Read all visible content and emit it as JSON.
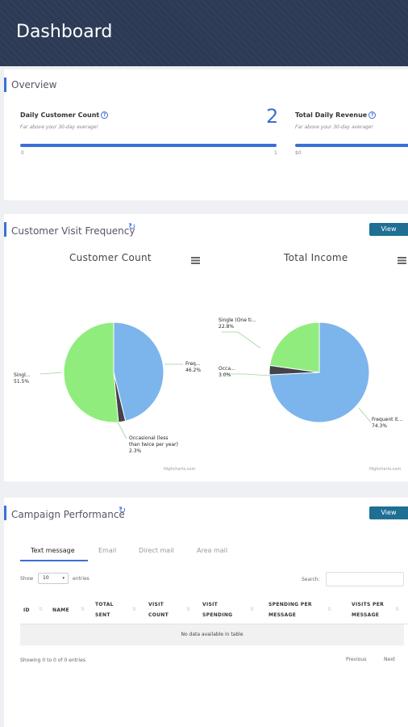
{
  "header": {
    "title": "Dashboard"
  },
  "overview": {
    "title": "Overview",
    "metrics": [
      {
        "label": "Daily Customer Count",
        "sub": "Far above your 30-day average!",
        "value": "2",
        "bar_min": "0",
        "bar_max": "1",
        "progress": 1.0
      },
      {
        "label": "Total Daily Revenue",
        "sub": "Far above your 30-day average!",
        "value": "",
        "bar_min": "$0",
        "progress": 1.0
      }
    ]
  },
  "visit_frequency": {
    "title": "Customer Visit Frequency",
    "view_label": "View",
    "credits": "Highcharts.com",
    "colors": {
      "frequent": "#7cb5ec",
      "single": "#90ed7d",
      "occasional": "#434348"
    }
  },
  "chart_data": [
    {
      "type": "pie",
      "title": "Customer Count",
      "series": [
        {
          "name": "Frequent",
          "value": 46.2,
          "label": "Freq...",
          "pct": "46.2%"
        },
        {
          "name": "Occasional (less than twice per year)",
          "value": 2.3,
          "label_lines": [
            "Occasional (less",
            "than twice per year)"
          ],
          "pct": "2.3%"
        },
        {
          "name": "Single",
          "value": 51.5,
          "label": "Singl...",
          "pct": "51.5%"
        }
      ]
    },
    {
      "type": "pie",
      "title": "Total Income",
      "series": [
        {
          "name": "Frequent",
          "value": 74.3,
          "label": "Frequent it...",
          "pct": "74.3%"
        },
        {
          "name": "Occasional",
          "value": 3.0,
          "label": "Occa...",
          "pct": "3.0%"
        },
        {
          "name": "Single",
          "value": 22.8,
          "label": "Single (One ti...",
          "pct": "22.8%"
        }
      ]
    }
  ],
  "campaign": {
    "title": "Campaign Performance",
    "view_label": "View",
    "tabs": [
      "Text message",
      "Email",
      "Direct mail",
      "Area mail"
    ],
    "show_label": "Show",
    "entries_value": "10",
    "entries_label": "entries",
    "search_label": "Search:",
    "columns": [
      [
        "ID"
      ],
      [
        "NAME"
      ],
      [
        "TOTAL",
        "SENT"
      ],
      [
        "VISIT",
        "COUNT"
      ],
      [
        "VISIT",
        "SPENDING"
      ],
      [
        "SPENDING PER",
        "MESSAGE"
      ],
      [
        "VISITS PER",
        "MESSAGE"
      ]
    ],
    "empty_text": "No data available in table",
    "showing_text": "Showing 0 to 0 of 0 entries",
    "prev_label": "Previous",
    "next_label": "Next"
  }
}
